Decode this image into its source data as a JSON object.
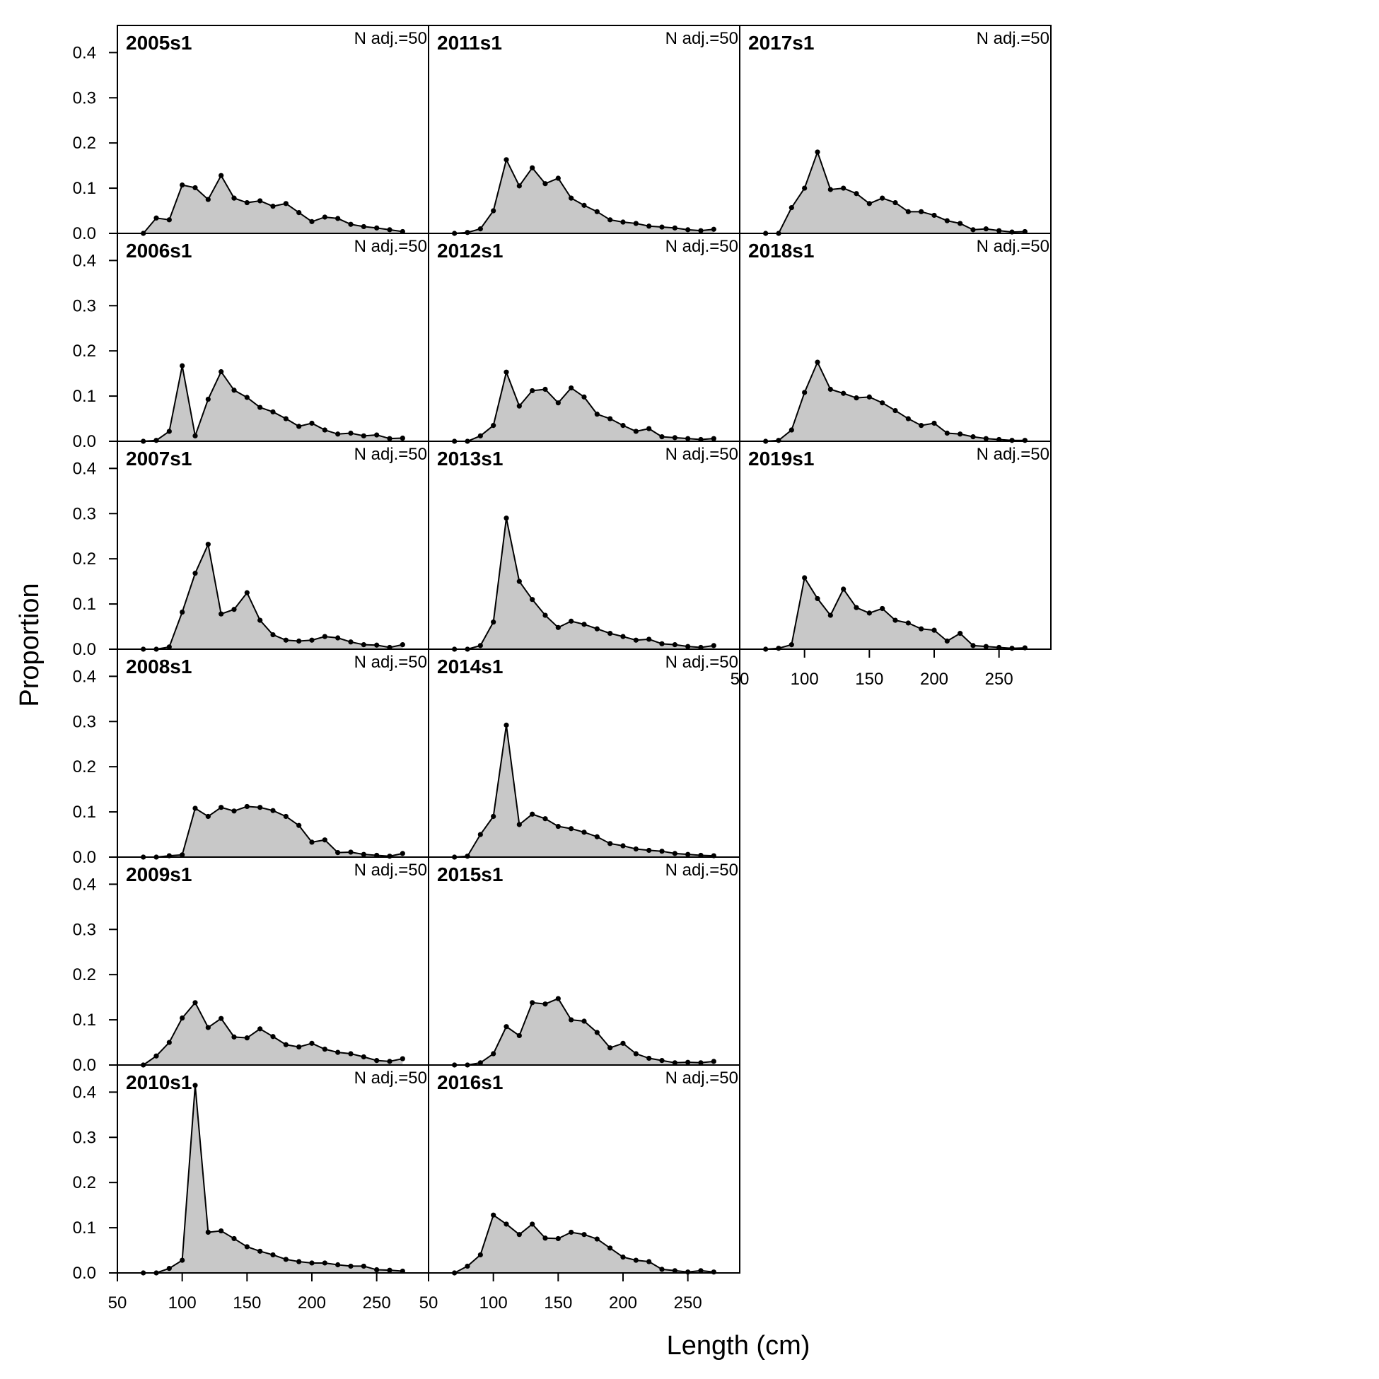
{
  "figure": {
    "xlabel": "Length (cm)",
    "ylabel": "Proportion"
  },
  "chart_data": {
    "type": "area",
    "panel_note": "N adj.=50",
    "x": [
      70,
      80,
      90,
      100,
      110,
      120,
      130,
      140,
      150,
      160,
      170,
      180,
      190,
      200,
      210,
      220,
      230,
      240,
      250,
      260,
      270
    ],
    "xlim": [
      50,
      290
    ],
    "ylim": [
      0,
      0.46
    ],
    "xticks": [
      "50",
      "100",
      "150",
      "200",
      "250"
    ],
    "yticks": [
      "0.0",
      "0.1",
      "0.2",
      "0.3",
      "0.4"
    ],
    "series": [
      {
        "name": "2005s1",
        "values": [
          0,
          0.034,
          0.03,
          0.107,
          0.101,
          0.075,
          0.128,
          0.078,
          0.068,
          0.072,
          0.06,
          0.066,
          0.046,
          0.026,
          0.036,
          0.033,
          0.02,
          0.015,
          0.012,
          0.008,
          0.004
        ]
      },
      {
        "name": "2006s1",
        "values": [
          0,
          0.002,
          0.022,
          0.167,
          0.012,
          0.093,
          0.154,
          0.113,
          0.097,
          0.075,
          0.065,
          0.05,
          0.033,
          0.04,
          0.025,
          0.016,
          0.018,
          0.012,
          0.014,
          0.006,
          0.007
        ]
      },
      {
        "name": "2007s1",
        "values": [
          0,
          0,
          0.005,
          0.082,
          0.168,
          0.232,
          0.078,
          0.088,
          0.125,
          0.064,
          0.032,
          0.02,
          0.018,
          0.02,
          0.028,
          0.025,
          0.016,
          0.01,
          0.009,
          0.004,
          0.01
        ]
      },
      {
        "name": "2008s1",
        "values": [
          0,
          0,
          0.003,
          0.005,
          0.108,
          0.09,
          0.11,
          0.102,
          0.112,
          0.11,
          0.103,
          0.09,
          0.07,
          0.033,
          0.038,
          0.01,
          0.011,
          0.006,
          0.004,
          0.002,
          0.008
        ]
      },
      {
        "name": "2009s1",
        "values": [
          0,
          0.02,
          0.05,
          0.104,
          0.138,
          0.083,
          0.103,
          0.062,
          0.06,
          0.08,
          0.063,
          0.045,
          0.04,
          0.048,
          0.035,
          0.028,
          0.025,
          0.018,
          0.01,
          0.008,
          0.014
        ]
      },
      {
        "name": "2010s1",
        "values": [
          0,
          0,
          0.01,
          0.028,
          0.415,
          0.09,
          0.093,
          0.076,
          0.058,
          0.048,
          0.04,
          0.03,
          0.025,
          0.022,
          0.022,
          0.018,
          0.015,
          0.015,
          0.007,
          0.006,
          0.004
        ]
      },
      {
        "name": "2011s1",
        "values": [
          0,
          0.002,
          0.01,
          0.05,
          0.163,
          0.105,
          0.145,
          0.11,
          0.122,
          0.078,
          0.062,
          0.048,
          0.03,
          0.025,
          0.022,
          0.016,
          0.014,
          0.012,
          0.008,
          0.006,
          0.009
        ]
      },
      {
        "name": "2012s1",
        "values": [
          0,
          0,
          0.012,
          0.035,
          0.153,
          0.078,
          0.112,
          0.115,
          0.085,
          0.118,
          0.098,
          0.06,
          0.05,
          0.035,
          0.022,
          0.028,
          0.01,
          0.008,
          0.006,
          0.004,
          0.006
        ]
      },
      {
        "name": "2013s1",
        "values": [
          0,
          0,
          0.008,
          0.06,
          0.29,
          0.15,
          0.11,
          0.075,
          0.048,
          0.062,
          0.055,
          0.045,
          0.035,
          0.028,
          0.02,
          0.022,
          0.012,
          0.01,
          0.006,
          0.004,
          0.008
        ]
      },
      {
        "name": "2014s1",
        "values": [
          0,
          0.002,
          0.05,
          0.09,
          0.292,
          0.072,
          0.095,
          0.085,
          0.068,
          0.063,
          0.055,
          0.045,
          0.03,
          0.025,
          0.018,
          0.015,
          0.013,
          0.008,
          0.006,
          0.004,
          0.003
        ]
      },
      {
        "name": "2015s1",
        "values": [
          0,
          0,
          0.005,
          0.025,
          0.085,
          0.065,
          0.138,
          0.135,
          0.147,
          0.1,
          0.097,
          0.072,
          0.038,
          0.048,
          0.025,
          0.015,
          0.01,
          0.005,
          0.006,
          0.005,
          0.008
        ]
      },
      {
        "name": "2016s1",
        "values": [
          0,
          0.015,
          0.04,
          0.128,
          0.108,
          0.085,
          0.108,
          0.077,
          0.076,
          0.09,
          0.085,
          0.075,
          0.055,
          0.035,
          0.028,
          0.025,
          0.008,
          0.005,
          0.002,
          0.005,
          0.002
        ]
      },
      {
        "name": "2017s1",
        "values": [
          0,
          0,
          0.057,
          0.1,
          0.18,
          0.097,
          0.1,
          0.088,
          0.066,
          0.078,
          0.068,
          0.048,
          0.048,
          0.04,
          0.028,
          0.022,
          0.008,
          0.01,
          0.006,
          0.003,
          0.004
        ]
      },
      {
        "name": "2018s1",
        "values": [
          0,
          0.002,
          0.025,
          0.108,
          0.175,
          0.115,
          0.106,
          0.096,
          0.098,
          0.085,
          0.068,
          0.05,
          0.035,
          0.04,
          0.018,
          0.016,
          0.01,
          0.006,
          0.004,
          0.002,
          0.002
        ]
      },
      {
        "name": "2019s1",
        "values": [
          0,
          0.002,
          0.01,
          0.158,
          0.112,
          0.075,
          0.133,
          0.092,
          0.08,
          0.09,
          0.064,
          0.058,
          0.045,
          0.042,
          0.018,
          0.035,
          0.008,
          0.006,
          0.004,
          0.002,
          0.003
        ]
      }
    ]
  }
}
